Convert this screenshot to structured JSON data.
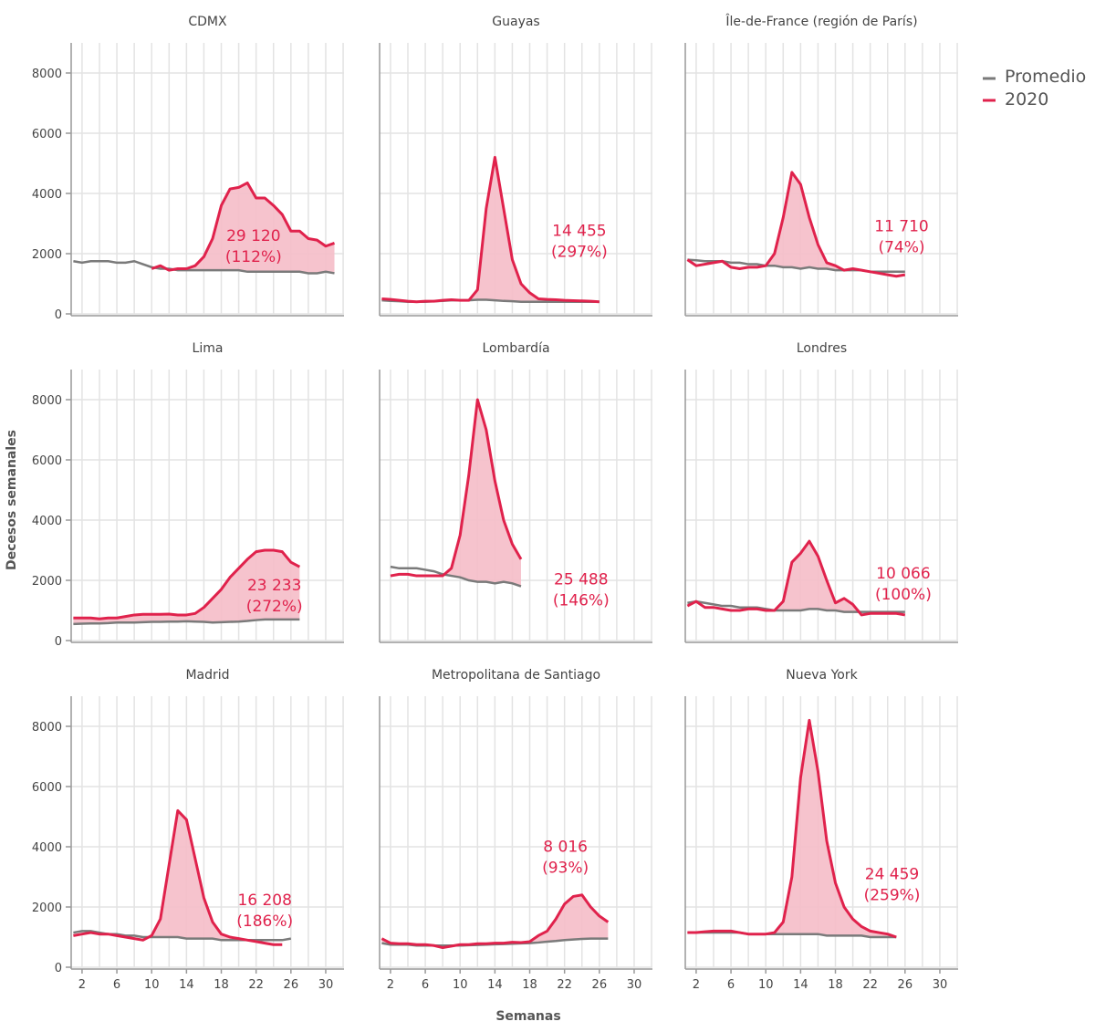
{
  "chart_data": {
    "type": "area",
    "xlabel": "Semanas",
    "ylabel": "Decesos semanales",
    "ylim": [
      0,
      9000
    ],
    "xlim": [
      0.75,
      32.1
    ],
    "yticks": [
      0,
      2000,
      4000,
      6000,
      8000
    ],
    "xticks": [
      2,
      6,
      10,
      14,
      18,
      22,
      26,
      30
    ],
    "grid": true,
    "legend": {
      "position": "top-right",
      "entries": [
        {
          "name": "Promedio",
          "color": "#7a7a7a"
        },
        {
          "name": "2020",
          "color": "#e0224c"
        }
      ]
    },
    "colors": {
      "promedio": "#7a7a7a",
      "y2020": "#e0224c",
      "excess_fill": "#f5bcc8"
    },
    "panels": [
      {
        "title": "CDMX",
        "annotation": {
          "total": "29 120",
          "pct": "(112%)",
          "week": 21.7,
          "value": 2600
        },
        "avg_start": 1,
        "avg": [
          1750,
          1700,
          1750,
          1750,
          1750,
          1700,
          1700,
          1750,
          1650,
          1550,
          1500,
          1500,
          1450,
          1450,
          1450,
          1450,
          1450,
          1450,
          1450,
          1450,
          1400,
          1400,
          1400,
          1400,
          1400,
          1400,
          1400,
          1350,
          1350,
          1400,
          1350
        ],
        "y2020_start": 10,
        "y2020": [
          1500,
          1600,
          1450,
          1500,
          1500,
          1600,
          1900,
          2500,
          3600,
          4150,
          4200,
          4350,
          3850,
          3850,
          3600,
          3300,
          2750,
          2750,
          2500,
          2450,
          2250,
          2350
        ]
      },
      {
        "title": "Guayas",
        "annotation": {
          "total": "14 455",
          "pct": "(297%)",
          "week": 23.7,
          "value": 2770
        },
        "avg_start": 1,
        "avg": [
          450,
          430,
          420,
          400,
          400,
          400,
          420,
          430,
          450,
          450,
          450,
          470,
          470,
          450,
          430,
          420,
          400,
          400,
          400,
          400,
          400,
          400,
          400,
          400,
          400,
          400
        ],
        "y2020_start": 1,
        "y2020": [
          500,
          480,
          450,
          420,
          400,
          420,
          420,
          450,
          470,
          450,
          450,
          800,
          3500,
          5200,
          3500,
          1800,
          1000,
          700,
          500,
          480,
          470,
          450,
          440,
          430,
          420,
          400
        ]
      },
      {
        "title": "Île-de-France (región de París)",
        "annotation": {
          "total": "11 710",
          "pct": "(74%)",
          "week": 25.6,
          "value": 2920
        },
        "avg_start": 1,
        "avg": [
          1800,
          1780,
          1750,
          1750,
          1750,
          1700,
          1700,
          1650,
          1650,
          1600,
          1600,
          1550,
          1550,
          1500,
          1550,
          1500,
          1500,
          1450,
          1450,
          1450,
          1450,
          1400,
          1400,
          1400,
          1400,
          1400
        ],
        "y2020_start": 1,
        "y2020": [
          1800,
          1600,
          1650,
          1700,
          1750,
          1550,
          1500,
          1550,
          1550,
          1600,
          2000,
          3200,
          4700,
          4300,
          3200,
          2300,
          1700,
          1600,
          1450,
          1500,
          1450,
          1400,
          1350,
          1300,
          1250,
          1300
        ]
      },
      {
        "title": "Lima",
        "annotation": {
          "total": "23 233",
          "pct": "(272%)",
          "week": 24.1,
          "value": 1850
        },
        "avg_start": 1,
        "avg": [
          550,
          560,
          570,
          570,
          580,
          600,
          600,
          600,
          610,
          620,
          620,
          630,
          630,
          640,
          630,
          620,
          600,
          610,
          620,
          630,
          650,
          680,
          700,
          700,
          700,
          700,
          700
        ],
        "y2020_start": 1,
        "y2020": [
          750,
          750,
          750,
          720,
          750,
          750,
          800,
          850,
          870,
          870,
          870,
          880,
          850,
          850,
          900,
          1100,
          1400,
          1700,
          2100,
          2400,
          2700,
          2950,
          3000,
          3000,
          2950,
          2600,
          2450
        ]
      },
      {
        "title": "Lombardía",
        "annotation": {
          "total": "25 488",
          "pct": "(146%)",
          "week": 23.9,
          "value": 2040
        },
        "avg_start": 2,
        "avg": [
          2450,
          2400,
          2400,
          2400,
          2350,
          2300,
          2200,
          2150,
          2100,
          2000,
          1950,
          1950,
          1900,
          1950,
          1900,
          1800
        ],
        "y2020_start": 2,
        "y2020": [
          2150,
          2200,
          2200,
          2150,
          2150,
          2150,
          2150,
          2400,
          3500,
          5500,
          8000,
          7000,
          5300,
          4000,
          3200,
          2700
        ]
      },
      {
        "title": "Londres",
        "annotation": {
          "total": "10 066",
          "pct": "(100%)",
          "week": 25.8,
          "value": 2250
        },
        "avg_start": 1,
        "avg": [
          1250,
          1300,
          1250,
          1200,
          1150,
          1150,
          1100,
          1100,
          1100,
          1050,
          1000,
          1000,
          1000,
          1000,
          1050,
          1050,
          1000,
          1000,
          950,
          950,
          950,
          950,
          950,
          950,
          950,
          950
        ],
        "y2020_start": 1,
        "y2020": [
          1150,
          1300,
          1100,
          1100,
          1050,
          1000,
          1000,
          1050,
          1050,
          1000,
          1000,
          1300,
          2600,
          2900,
          3300,
          2800,
          2000,
          1250,
          1400,
          1200,
          850,
          900,
          900,
          900,
          900,
          850
        ]
      },
      {
        "title": "Madrid",
        "annotation": {
          "total": "16 208",
          "pct": "(186%)",
          "week": 23.0,
          "value": 2250
        },
        "avg_start": 1,
        "avg": [
          1150,
          1200,
          1200,
          1150,
          1100,
          1100,
          1050,
          1050,
          1000,
          1000,
          1000,
          1000,
          1000,
          950,
          950,
          950,
          950,
          900,
          900,
          900,
          900,
          900,
          900,
          900,
          900,
          950
        ],
        "y2020_start": 1,
        "y2020": [
          1050,
          1100,
          1150,
          1100,
          1100,
          1050,
          1000,
          950,
          900,
          1050,
          1600,
          3400,
          5200,
          4900,
          3600,
          2300,
          1500,
          1100,
          1000,
          950,
          900,
          850,
          800,
          750,
          750
        ]
      },
      {
        "title": "Metropolitana de Santiago",
        "annotation": {
          "total": "8 016",
          "pct": "(93%)",
          "week": 22.1,
          "value": 4010
        },
        "avg_start": 1,
        "avg": [
          800,
          750,
          750,
          750,
          720,
          720,
          720,
          720,
          720,
          720,
          730,
          740,
          750,
          760,
          770,
          780,
          790,
          800,
          820,
          850,
          870,
          900,
          920,
          940,
          950,
          950,
          950
        ],
        "y2020_start": 1,
        "y2020": [
          950,
          800,
          780,
          780,
          750,
          750,
          720,
          650,
          700,
          750,
          750,
          780,
          780,
          800,
          800,
          830,
          820,
          850,
          1050,
          1200,
          1600,
          2100,
          2350,
          2400,
          2000,
          1700,
          1500
        ]
      },
      {
        "title": "Nueva York",
        "annotation": {
          "total": "24 459",
          "pct": "(259%)",
          "week": 24.5,
          "value": 3100
        },
        "avg_start": 1,
        "avg": [
          1150,
          1150,
          1150,
          1150,
          1150,
          1150,
          1150,
          1100,
          1100,
          1100,
          1100,
          1100,
          1100,
          1100,
          1100,
          1100,
          1050,
          1050,
          1050,
          1050,
          1050,
          1000,
          1000,
          1000,
          1000
        ],
        "y2020_start": 1,
        "y2020": [
          1150,
          1150,
          1180,
          1200,
          1200,
          1200,
          1150,
          1100,
          1100,
          1100,
          1150,
          1500,
          3000,
          6300,
          8200,
          6500,
          4200,
          2800,
          2000,
          1600,
          1350,
          1200,
          1150,
          1100,
          1000
        ]
      }
    ]
  }
}
